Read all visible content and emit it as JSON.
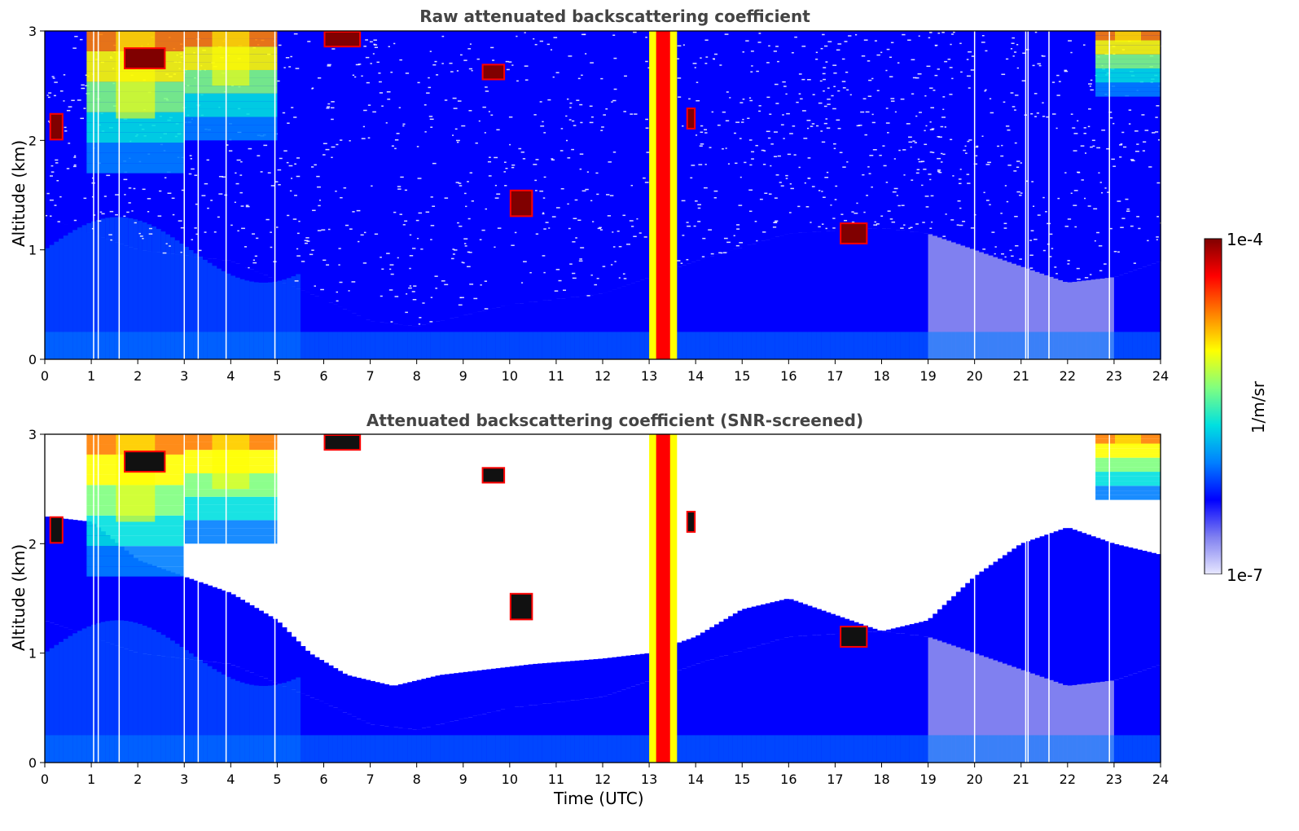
{
  "chart_data": [
    {
      "type": "heatmap",
      "title": "Raw attenuated backscattering coefficient",
      "ylabel": "Altitude (km)",
      "xlabel": "",
      "xlim": [
        0,
        24
      ],
      "ylim": [
        0,
        3
      ],
      "xticks": [
        "0",
        "1",
        "2",
        "3",
        "4",
        "5",
        "6",
        "7",
        "8",
        "9",
        "10",
        "11",
        "12",
        "13",
        "14",
        "15",
        "16",
        "17",
        "18",
        "19",
        "20",
        "21",
        "22",
        "23",
        "24"
      ],
      "yticks": [
        "0",
        "1",
        "2",
        "3"
      ],
      "screened": false,
      "features": {
        "boundary_layer_top_km": [
          [
            0,
            1.3
          ],
          [
            2,
            1.0
          ],
          [
            4,
            0.9
          ],
          [
            6,
            0.55
          ],
          [
            7,
            0.35
          ],
          [
            8,
            0.3
          ],
          [
            10,
            0.5
          ],
          [
            12,
            0.6
          ],
          [
            14,
            0.9
          ],
          [
            16,
            1.15
          ],
          [
            18,
            1.2
          ],
          [
            19,
            1.15
          ],
          [
            20,
            1.0
          ],
          [
            21,
            0.85
          ],
          [
            22,
            0.7
          ],
          [
            23,
            0.75
          ],
          [
            24,
            0.9
          ]
        ],
        "upper_cloud_blocks": [
          {
            "x": [
              0.9,
              3.0
            ],
            "y_base": 1.7,
            "y_top": 3.0
          },
          {
            "x": [
              3.0,
              5.0
            ],
            "y_base": 2.0,
            "y_top": 3.0
          },
          {
            "x": [
              22.6,
              24.0
            ],
            "y_base": 2.4,
            "y_top": 3.0
          }
        ],
        "precip_column_x_utc": [
          13.0,
          13.6
        ],
        "strong_layers": [
          {
            "x": [
              0.1,
              0.4
            ],
            "y": [
              2.0,
              2.25
            ]
          },
          {
            "x": [
              1.7,
              2.6
            ],
            "y": [
              2.65,
              2.85
            ]
          },
          {
            "x": [
              6.0,
              6.8
            ],
            "y": [
              2.85,
              3.0
            ]
          },
          {
            "x": [
              9.4,
              9.9
            ],
            "y": [
              2.55,
              2.7
            ]
          },
          {
            "x": [
              10.0,
              10.5
            ],
            "y": [
              1.3,
              1.55
            ]
          },
          {
            "x": [
              13.8,
              14.0
            ],
            "y": [
              2.1,
              2.3
            ]
          },
          {
            "x": [
              17.1,
              17.7
            ],
            "y": [
              1.05,
              1.25
            ]
          }
        ],
        "data_gaps_utc": [
          1.05,
          1.15,
          1.6,
          3.0,
          3.3,
          3.9,
          4.95,
          20.0,
          21.1,
          21.15,
          21.6,
          22.9
        ]
      }
    },
    {
      "type": "heatmap",
      "title": "Attenuated backscattering coefficient (SNR-screened)",
      "ylabel": "Altitude (km)",
      "xlabel": "Time (UTC)",
      "xlim": [
        0,
        24
      ],
      "ylim": [
        0,
        3
      ],
      "xticks": [
        "0",
        "1",
        "2",
        "3",
        "4",
        "5",
        "6",
        "7",
        "8",
        "9",
        "10",
        "11",
        "12",
        "13",
        "14",
        "15",
        "16",
        "17",
        "18",
        "19",
        "20",
        "21",
        "22",
        "23",
        "24"
      ],
      "yticks": [
        "0",
        "1",
        "2",
        "3"
      ],
      "screened": true,
      "features": {
        "valid_top_km": [
          [
            0,
            2.25
          ],
          [
            1,
            2.2
          ],
          [
            2,
            1.85
          ],
          [
            3,
            1.7
          ],
          [
            4,
            1.55
          ],
          [
            5,
            1.3
          ],
          [
            5.7,
            1.0
          ],
          [
            6.5,
            0.8
          ],
          [
            7.5,
            0.7
          ],
          [
            8.5,
            0.8
          ],
          [
            9.5,
            0.85
          ],
          [
            10.5,
            0.9
          ],
          [
            12,
            0.95
          ],
          [
            13,
            1.0
          ],
          [
            14,
            1.15
          ],
          [
            15,
            1.4
          ],
          [
            16,
            1.5
          ],
          [
            17,
            1.35
          ],
          [
            18,
            1.2
          ],
          [
            19,
            1.3
          ],
          [
            20,
            1.7
          ],
          [
            21,
            2.0
          ],
          [
            22,
            2.15
          ],
          [
            23,
            2.0
          ],
          [
            24,
            1.9
          ]
        ],
        "boundary_layer_top_km": [
          [
            0,
            1.3
          ],
          [
            2,
            1.0
          ],
          [
            4,
            0.9
          ],
          [
            6,
            0.55
          ],
          [
            7,
            0.35
          ],
          [
            8,
            0.3
          ],
          [
            10,
            0.5
          ],
          [
            12,
            0.6
          ],
          [
            14,
            0.9
          ],
          [
            16,
            1.15
          ],
          [
            18,
            1.2
          ],
          [
            19,
            1.15
          ],
          [
            20,
            1.0
          ],
          [
            21,
            0.85
          ],
          [
            22,
            0.7
          ],
          [
            23,
            0.75
          ],
          [
            24,
            0.9
          ]
        ],
        "upper_cloud_blocks": [
          {
            "x": [
              0.9,
              3.0
            ],
            "y_base": 1.7,
            "y_top": 3.0
          },
          {
            "x": [
              3.0,
              5.0
            ],
            "y_base": 2.0,
            "y_top": 3.0
          },
          {
            "x": [
              22.6,
              24.0
            ],
            "y_base": 2.4,
            "y_top": 3.0
          }
        ],
        "precip_column_x_utc": [
          13.0,
          13.6
        ],
        "strong_layers": [
          {
            "x": [
              0.1,
              0.4
            ],
            "y": [
              2.0,
              2.25
            ]
          },
          {
            "x": [
              1.7,
              2.6
            ],
            "y": [
              2.65,
              2.85
            ]
          },
          {
            "x": [
              6.0,
              6.8
            ],
            "y": [
              2.85,
              3.0
            ]
          },
          {
            "x": [
              9.4,
              9.9
            ],
            "y": [
              2.55,
              2.7
            ]
          },
          {
            "x": [
              10.0,
              10.5
            ],
            "y": [
              1.3,
              1.55
            ]
          },
          {
            "x": [
              13.8,
              14.0
            ],
            "y": [
              2.1,
              2.3
            ]
          },
          {
            "x": [
              17.1,
              17.7
            ],
            "y": [
              1.05,
              1.25
            ]
          }
        ],
        "data_gaps_utc": [
          1.05,
          1.15,
          1.6,
          3.0,
          3.3,
          3.9,
          4.95,
          20.0,
          21.1,
          21.15,
          21.6,
          22.9
        ]
      }
    }
  ],
  "colorbar": {
    "label": "1/m/sr",
    "min_label": "1e-7",
    "max_label": "1e-4",
    "scale": "log",
    "colormap": "jet",
    "colors": [
      "#e8e8ff",
      "#8080f0",
      "#0000ff",
      "#0080ff",
      "#00e0e0",
      "#80ff80",
      "#ffff00",
      "#ff8000",
      "#ff0000",
      "#800000"
    ]
  }
}
